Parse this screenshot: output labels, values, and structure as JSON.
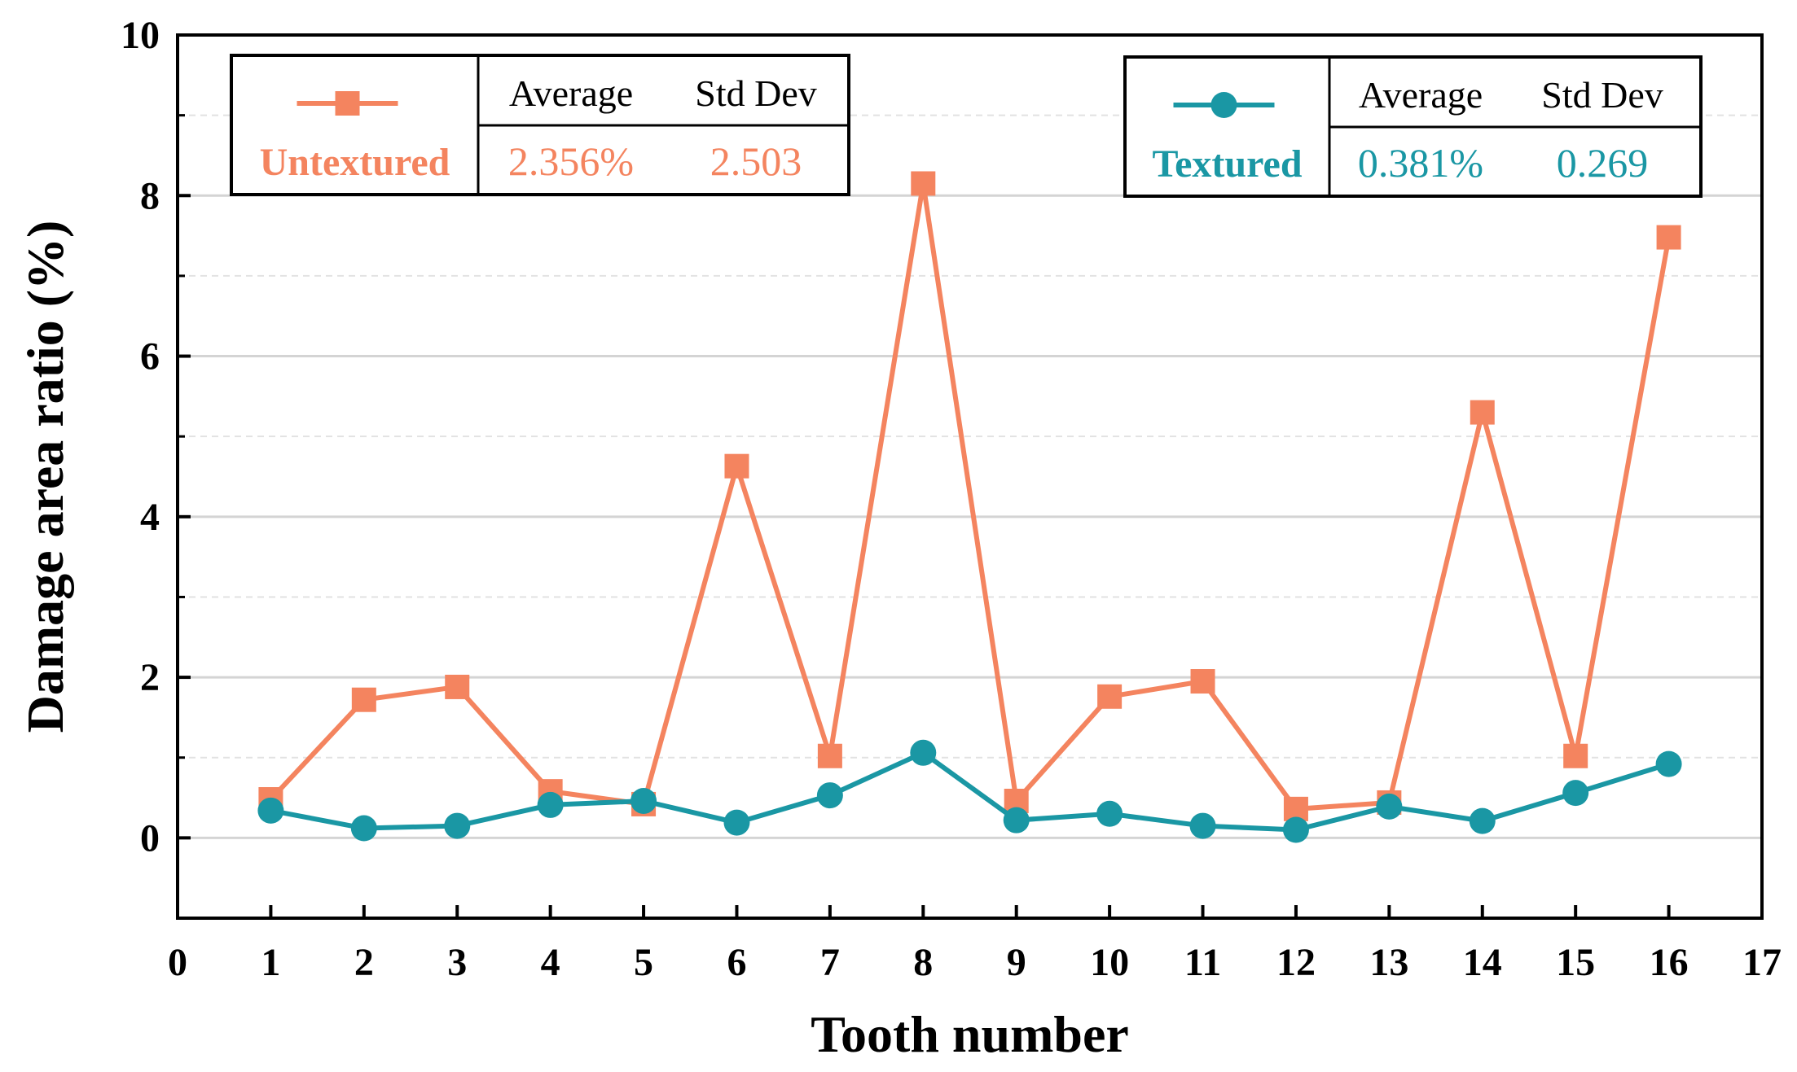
{
  "chart_data": {
    "type": "line",
    "xlabel": "Tooth number",
    "ylabel": "Damage area ratio (%)",
    "xlim": [
      0,
      17
    ],
    "ylim": [
      -1,
      10
    ],
    "x_ticks": [
      "0",
      "1",
      "2",
      "3",
      "4",
      "5",
      "6",
      "7",
      "8",
      "9",
      "10",
      "11",
      "12",
      "13",
      "14",
      "15",
      "16",
      "17"
    ],
    "y_ticks": [
      "0",
      "2",
      "4",
      "6",
      "8",
      "10"
    ],
    "grid": true,
    "x": [
      1,
      2,
      3,
      4,
      5,
      6,
      7,
      8,
      9,
      10,
      11,
      12,
      13,
      14,
      15,
      16
    ],
    "series": [
      {
        "name": "Untextured",
        "color": "#F4845F",
        "marker": "square",
        "values": [
          0.48,
          1.72,
          1.88,
          0.58,
          0.42,
          4.63,
          1.02,
          8.15,
          0.46,
          1.76,
          1.95,
          0.36,
          0.44,
          5.3,
          1.02,
          7.48
        ]
      },
      {
        "name": "Textured",
        "color": "#1A97A4",
        "marker": "circle",
        "values": [
          0.34,
          0.12,
          0.15,
          0.41,
          0.46,
          0.19,
          0.53,
          1.06,
          0.22,
          0.3,
          0.15,
          0.1,
          0.39,
          0.21,
          0.56,
          0.92
        ]
      }
    ],
    "summary_tables": [
      {
        "series": "Untextured",
        "col1_header": "Average",
        "col2_header": "Std Dev",
        "average": "2.356%",
        "std_dev": "2.503"
      },
      {
        "series": "Textured",
        "col1_header": "Average",
        "col2_header": "Std Dev",
        "average": "0.381%",
        "std_dev": "0.269"
      }
    ]
  }
}
